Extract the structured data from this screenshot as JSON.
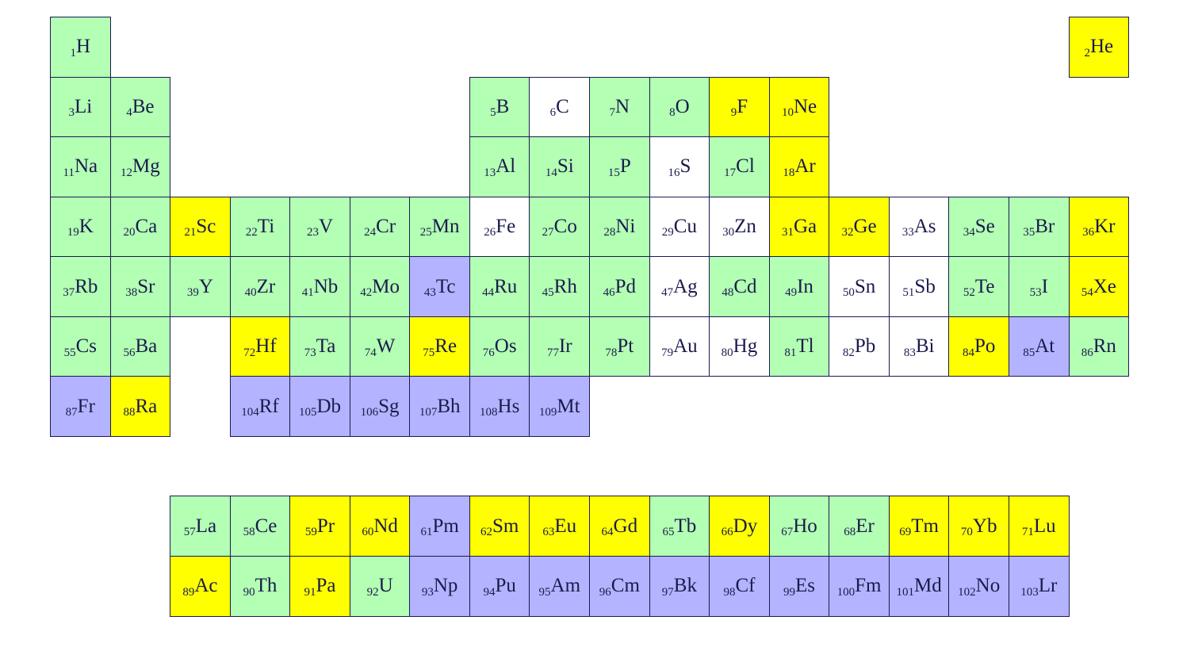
{
  "colors": {
    "green": "#b3ffb3",
    "yellow": "#ffff00",
    "blue": "#b3b3ff",
    "white": "#ffffff"
  },
  "elements": [
    {
      "number": "1",
      "symbol": "H",
      "color": "green"
    },
    {
      "number": "2",
      "symbol": "He",
      "color": "yellow"
    },
    {
      "number": "3",
      "symbol": "Li",
      "color": "green"
    },
    {
      "number": "4",
      "symbol": "Be",
      "color": "green"
    },
    {
      "number": "5",
      "symbol": "B",
      "color": "green"
    },
    {
      "number": "6",
      "symbol": "C",
      "color": "white"
    },
    {
      "number": "7",
      "symbol": "N",
      "color": "green"
    },
    {
      "number": "8",
      "symbol": "O",
      "color": "green"
    },
    {
      "number": "9",
      "symbol": "F",
      "color": "yellow"
    },
    {
      "number": "10",
      "symbol": "Ne",
      "color": "yellow"
    },
    {
      "number": "11",
      "symbol": "Na",
      "color": "green"
    },
    {
      "number": "12",
      "symbol": "Mg",
      "color": "green"
    },
    {
      "number": "13",
      "symbol": "Al",
      "color": "green"
    },
    {
      "number": "14",
      "symbol": "Si",
      "color": "green"
    },
    {
      "number": "15",
      "symbol": "P",
      "color": "green"
    },
    {
      "number": "16",
      "symbol": "S",
      "color": "white"
    },
    {
      "number": "17",
      "symbol": "Cl",
      "color": "green"
    },
    {
      "number": "18",
      "symbol": "Ar",
      "color": "yellow"
    },
    {
      "number": "19",
      "symbol": "K",
      "color": "green"
    },
    {
      "number": "20",
      "symbol": "Ca",
      "color": "green"
    },
    {
      "number": "21",
      "symbol": "Sc",
      "color": "yellow"
    },
    {
      "number": "22",
      "symbol": "Ti",
      "color": "green"
    },
    {
      "number": "23",
      "symbol": "V",
      "color": "green"
    },
    {
      "number": "24",
      "symbol": "Cr",
      "color": "green"
    },
    {
      "number": "25",
      "symbol": "Mn",
      "color": "green"
    },
    {
      "number": "26",
      "symbol": "Fe",
      "color": "white"
    },
    {
      "number": "27",
      "symbol": "Co",
      "color": "green"
    },
    {
      "number": "28",
      "symbol": "Ni",
      "color": "green"
    },
    {
      "number": "29",
      "symbol": "Cu",
      "color": "white"
    },
    {
      "number": "30",
      "symbol": "Zn",
      "color": "white"
    },
    {
      "number": "31",
      "symbol": "Ga",
      "color": "yellow"
    },
    {
      "number": "32",
      "symbol": "Ge",
      "color": "yellow"
    },
    {
      "number": "33",
      "symbol": "As",
      "color": "white"
    },
    {
      "number": "34",
      "symbol": "Se",
      "color": "green"
    },
    {
      "number": "35",
      "symbol": "Br",
      "color": "green"
    },
    {
      "number": "36",
      "symbol": "Kr",
      "color": "yellow"
    },
    {
      "number": "37",
      "symbol": "Rb",
      "color": "green"
    },
    {
      "number": "38",
      "symbol": "Sr",
      "color": "green"
    },
    {
      "number": "39",
      "symbol": "Y",
      "color": "green"
    },
    {
      "number": "40",
      "symbol": "Zr",
      "color": "green"
    },
    {
      "number": "41",
      "symbol": "Nb",
      "color": "green"
    },
    {
      "number": "42",
      "symbol": "Mo",
      "color": "green"
    },
    {
      "number": "43",
      "symbol": "Tc",
      "color": "blue"
    },
    {
      "number": "44",
      "symbol": "Ru",
      "color": "green"
    },
    {
      "number": "45",
      "symbol": "Rh",
      "color": "green"
    },
    {
      "number": "46",
      "symbol": "Pd",
      "color": "green"
    },
    {
      "number": "47",
      "symbol": "Ag",
      "color": "white"
    },
    {
      "number": "48",
      "symbol": "Cd",
      "color": "green"
    },
    {
      "number": "49",
      "symbol": "In",
      "color": "green"
    },
    {
      "number": "50",
      "symbol": "Sn",
      "color": "white"
    },
    {
      "number": "51",
      "symbol": "Sb",
      "color": "white"
    },
    {
      "number": "52",
      "symbol": "Te",
      "color": "green"
    },
    {
      "number": "53",
      "symbol": "I",
      "color": "green"
    },
    {
      "number": "54",
      "symbol": "Xe",
      "color": "yellow"
    },
    {
      "number": "55",
      "symbol": "Cs",
      "color": "green"
    },
    {
      "number": "56",
      "symbol": "Ba",
      "color": "green"
    },
    {
      "number": "57",
      "symbol": "La",
      "color": "green"
    },
    {
      "number": "58",
      "symbol": "Ce",
      "color": "green"
    },
    {
      "number": "59",
      "symbol": "Pr",
      "color": "yellow"
    },
    {
      "number": "60",
      "symbol": "Nd",
      "color": "yellow"
    },
    {
      "number": "61",
      "symbol": "Pm",
      "color": "blue"
    },
    {
      "number": "62",
      "symbol": "Sm",
      "color": "yellow"
    },
    {
      "number": "63",
      "symbol": "Eu",
      "color": "yellow"
    },
    {
      "number": "64",
      "symbol": "Gd",
      "color": "yellow"
    },
    {
      "number": "65",
      "symbol": "Tb",
      "color": "green"
    },
    {
      "number": "66",
      "symbol": "Dy",
      "color": "yellow"
    },
    {
      "number": "67",
      "symbol": "Ho",
      "color": "green"
    },
    {
      "number": "68",
      "symbol": "Er",
      "color": "green"
    },
    {
      "number": "69",
      "symbol": "Tm",
      "color": "yellow"
    },
    {
      "number": "70",
      "symbol": "Yb",
      "color": "yellow"
    },
    {
      "number": "71",
      "symbol": "Lu",
      "color": "yellow"
    },
    {
      "number": "72",
      "symbol": "Hf",
      "color": "yellow"
    },
    {
      "number": "73",
      "symbol": "Ta",
      "color": "green"
    },
    {
      "number": "74",
      "symbol": "W",
      "color": "green"
    },
    {
      "number": "75",
      "symbol": "Re",
      "color": "yellow"
    },
    {
      "number": "76",
      "symbol": "Os",
      "color": "green"
    },
    {
      "number": "77",
      "symbol": "Ir",
      "color": "green"
    },
    {
      "number": "78",
      "symbol": "Pt",
      "color": "green"
    },
    {
      "number": "79",
      "symbol": "Au",
      "color": "white"
    },
    {
      "number": "80",
      "symbol": "Hg",
      "color": "white"
    },
    {
      "number": "81",
      "symbol": "Tl",
      "color": "green"
    },
    {
      "number": "82",
      "symbol": "Pb",
      "color": "white"
    },
    {
      "number": "83",
      "symbol": "Bi",
      "color": "white"
    },
    {
      "number": "84",
      "symbol": "Po",
      "color": "yellow"
    },
    {
      "number": "85",
      "symbol": "At",
      "color": "blue"
    },
    {
      "number": "86",
      "symbol": "Rn",
      "color": "green"
    },
    {
      "number": "87",
      "symbol": "Fr",
      "color": "blue"
    },
    {
      "number": "88",
      "symbol": "Ra",
      "color": "yellow"
    },
    {
      "number": "89",
      "symbol": "Ac",
      "color": "yellow"
    },
    {
      "number": "90",
      "symbol": "Th",
      "color": "green"
    },
    {
      "number": "91",
      "symbol": "Pa",
      "color": "yellow"
    },
    {
      "number": "92",
      "symbol": "U",
      "color": "green"
    },
    {
      "number": "93",
      "symbol": "Np",
      "color": "blue"
    },
    {
      "number": "94",
      "symbol": "Pu",
      "color": "blue"
    },
    {
      "number": "95",
      "symbol": "Am",
      "color": "blue"
    },
    {
      "number": "96",
      "symbol": "Cm",
      "color": "blue"
    },
    {
      "number": "97",
      "symbol": "Bk",
      "color": "blue"
    },
    {
      "number": "98",
      "symbol": "Cf",
      "color": "blue"
    },
    {
      "number": "99",
      "symbol": "Es",
      "color": "blue"
    },
    {
      "number": "100",
      "symbol": "Fm",
      "color": "blue"
    },
    {
      "number": "101",
      "symbol": "Md",
      "color": "blue"
    },
    {
      "number": "102",
      "symbol": "No",
      "color": "blue"
    },
    {
      "number": "103",
      "symbol": "Lr",
      "color": "blue"
    },
    {
      "number": "104",
      "symbol": "Rf",
      "color": "blue"
    },
    {
      "number": "105",
      "symbol": "Db",
      "color": "blue"
    },
    {
      "number": "106",
      "symbol": "Sg",
      "color": "blue"
    },
    {
      "number": "107",
      "symbol": "Bh",
      "color": "blue"
    },
    {
      "number": "108",
      "symbol": "Hs",
      "color": "blue"
    },
    {
      "number": "109",
      "symbol": "Mt",
      "color": "blue"
    }
  ]
}
